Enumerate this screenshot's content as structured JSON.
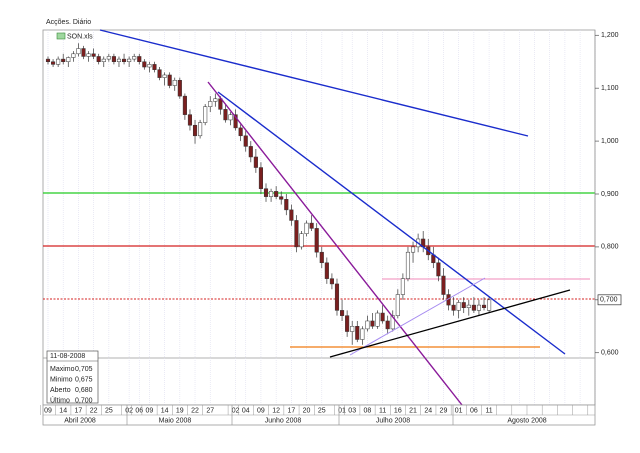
{
  "chart_data": {
    "type": "candlestick",
    "title": "Acções. Diário",
    "legend": "SON.xls",
    "categories": [
      "09",
      null,
      null,
      "14",
      null,
      null,
      "17",
      null,
      null,
      "22",
      null,
      null,
      "25",
      null,
      null,
      null,
      "02",
      null,
      "06",
      null,
      "09",
      null,
      null,
      "14",
      null,
      null,
      "19",
      null,
      null,
      "22",
      null,
      null,
      "27",
      null,
      null,
      null,
      null,
      "02",
      null,
      "04",
      null,
      null,
      "09",
      null,
      null,
      "12",
      null,
      null,
      "17",
      null,
      null,
      "20",
      null,
      null,
      "25",
      null,
      null,
      null,
      "01",
      null,
      "03",
      null,
      null,
      "08",
      null,
      null,
      "11",
      null,
      null,
      "16",
      null,
      null,
      "21",
      null,
      null,
      "24",
      null,
      null,
      "29",
      null,
      null,
      "01",
      null,
      null,
      "06",
      null,
      null,
      "11"
    ],
    "months": [
      "Abril 2008",
      "Maio 2008",
      "Junho 2008",
      "Julho 2008",
      "Agosto 2008"
    ],
    "open": [
      1.155,
      1.15,
      1.145,
      1.155,
      1.15,
      1.158,
      1.165,
      1.175,
      1.16,
      1.165,
      1.16,
      1.15,
      1.155,
      1.16,
      1.15,
      1.155,
      1.15,
      1.155,
      1.16,
      1.15,
      1.14,
      1.145,
      1.135,
      1.12,
      1.125,
      1.105,
      1.115,
      1.085,
      1.05,
      1.03,
      1.01,
      1.035,
      1.065,
      1.075,
      1.08,
      1.06,
      1.04,
      1.05,
      1.025,
      1.01,
      0.99,
      0.97,
      0.95,
      0.91,
      0.895,
      0.905,
      0.895,
      0.89,
      0.87,
      0.85,
      0.8,
      0.825,
      0.845,
      0.835,
      0.79,
      0.77,
      0.74,
      0.73,
      0.68,
      0.67,
      0.64,
      0.65,
      0.625,
      0.645,
      0.66,
      0.65,
      0.675,
      0.66,
      0.645,
      0.67,
      0.71,
      0.74,
      0.79,
      0.8,
      0.815,
      0.8,
      0.785,
      0.77,
      0.745,
      0.71,
      0.69,
      0.68,
      0.695,
      0.685,
      0.69,
      0.68,
      0.69,
      0.68
    ],
    "high": [
      1.16,
      1.155,
      1.16,
      1.165,
      1.16,
      1.17,
      1.185,
      1.18,
      1.17,
      1.175,
      1.165,
      1.16,
      1.165,
      1.165,
      1.16,
      1.165,
      1.16,
      1.165,
      1.165,
      1.155,
      1.15,
      1.15,
      1.14,
      1.13,
      1.13,
      1.12,
      1.12,
      1.09,
      1.06,
      1.04,
      1.04,
      1.07,
      1.085,
      1.09,
      1.085,
      1.07,
      1.055,
      1.06,
      1.035,
      1.02,
      1.0,
      0.985,
      0.96,
      0.92,
      0.91,
      0.915,
      0.905,
      0.9,
      0.88,
      0.86,
      0.83,
      0.85,
      0.86,
      0.845,
      0.8,
      0.78,
      0.75,
      0.74,
      0.7,
      0.68,
      0.66,
      0.66,
      0.65,
      0.67,
      0.675,
      0.68,
      0.69,
      0.67,
      0.68,
      0.72,
      0.75,
      0.8,
      0.81,
      0.825,
      0.83,
      0.815,
      0.8,
      0.78,
      0.76,
      0.72,
      0.705,
      0.7,
      0.705,
      0.7,
      0.705,
      0.7,
      0.705,
      0.705
    ],
    "low": [
      1.145,
      1.14,
      1.14,
      1.145,
      1.14,
      1.15,
      1.16,
      1.155,
      1.15,
      1.155,
      1.145,
      1.14,
      1.15,
      1.145,
      1.14,
      1.145,
      1.14,
      1.15,
      1.145,
      1.135,
      1.13,
      1.13,
      1.115,
      1.105,
      1.1,
      1.095,
      1.08,
      1.04,
      1.02,
      0.995,
      1.005,
      1.03,
      1.055,
      1.065,
      1.05,
      1.035,
      1.03,
      1.02,
      1.0,
      0.98,
      0.96,
      0.94,
      0.9,
      0.885,
      0.885,
      0.89,
      0.88,
      0.86,
      0.84,
      0.79,
      0.795,
      0.82,
      0.83,
      0.78,
      0.76,
      0.73,
      0.72,
      0.67,
      0.66,
      0.63,
      0.615,
      0.62,
      0.615,
      0.64,
      0.645,
      0.645,
      0.655,
      0.635,
      0.64,
      0.665,
      0.7,
      0.735,
      0.77,
      0.79,
      0.79,
      0.775,
      0.76,
      0.735,
      0.7,
      0.68,
      0.67,
      0.665,
      0.675,
      0.67,
      0.675,
      0.67,
      0.68,
      0.675
    ],
    "close": [
      1.15,
      1.145,
      1.155,
      1.15,
      1.158,
      1.165,
      1.175,
      1.16,
      1.165,
      1.16,
      1.15,
      1.155,
      1.16,
      1.15,
      1.155,
      1.15,
      1.155,
      1.16,
      1.15,
      1.14,
      1.145,
      1.135,
      1.12,
      1.125,
      1.105,
      1.115,
      1.085,
      1.05,
      1.03,
      1.01,
      1.035,
      1.065,
      1.075,
      1.08,
      1.06,
      1.04,
      1.05,
      1.025,
      1.01,
      0.99,
      0.97,
      0.95,
      0.91,
      0.895,
      0.905,
      0.895,
      0.89,
      0.87,
      0.85,
      0.8,
      0.825,
      0.845,
      0.835,
      0.79,
      0.77,
      0.74,
      0.73,
      0.68,
      0.67,
      0.64,
      0.65,
      0.625,
      0.645,
      0.66,
      0.65,
      0.675,
      0.66,
      0.645,
      0.67,
      0.71,
      0.74,
      0.79,
      0.8,
      0.815,
      0.8,
      0.785,
      0.77,
      0.745,
      0.71,
      0.69,
      0.68,
      0.695,
      0.685,
      0.69,
      0.68,
      0.69,
      0.685,
      0.7
    ],
    "ylim": [
      0.59,
      1.21
    ],
    "yticks": [
      {
        "value": 0.6,
        "label": "0,600"
      },
      {
        "value": 0.7,
        "label": "0,700"
      },
      {
        "value": 0.8,
        "label": "0,800"
      },
      {
        "value": 0.9,
        "label": "0,900"
      },
      {
        "value": 1.0,
        "label": "1,000"
      },
      {
        "value": 1.1,
        "label": "1,100"
      },
      {
        "value": 1.2,
        "label": "1,200"
      }
    ],
    "last_value": {
      "value": 0.7,
      "label": "0,700"
    },
    "up_color": "#ffffff",
    "down_color": "#7a1f1f",
    "info_box": {
      "date": "11-08-2008",
      "rows": [
        {
          "label": "Maximo",
          "value": "0,705"
        },
        {
          "label": "Minimo",
          "value": "0,675"
        },
        {
          "label": "Aberto",
          "value": "0,680"
        },
        {
          "label": "Último",
          "value": "0,700"
        }
      ]
    }
  }
}
